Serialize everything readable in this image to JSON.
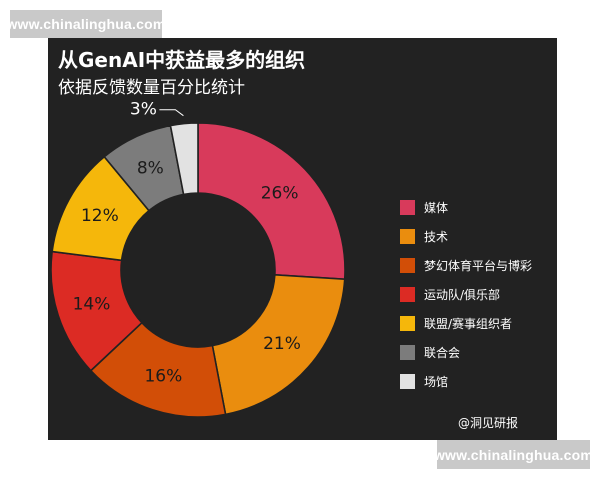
{
  "watermark": {
    "top": "www.chinalinghua.com",
    "bottom": "www.chinalinghua.com"
  },
  "source_credit": "@洞见研报",
  "chart_data": {
    "type": "pie",
    "donut": true,
    "title": "从GenAI中获益最多的组织",
    "subtitle": "依据反馈数量百分比统计",
    "legend_position": "right",
    "background": "#222222",
    "slices": [
      {
        "label": "媒体",
        "value": 26,
        "value_label": "26%",
        "color": "#d83a5b"
      },
      {
        "label": "技术",
        "value": 21,
        "value_label": "21%",
        "color": "#ea8d0e"
      },
      {
        "label": "梦幻体育平台与博彩",
        "value": 16,
        "value_label": "16%",
        "color": "#d24e07"
      },
      {
        "label": "运动队/俱乐部",
        "value": 14,
        "value_label": "14%",
        "color": "#dc2b24"
      },
      {
        "label": "联盟/赛事组织者",
        "value": 12,
        "value_label": "12%",
        "color": "#f5b70b"
      },
      {
        "label": "联合会",
        "value": 8,
        "value_label": "8%",
        "color": "#7c7c7c"
      },
      {
        "label": "场馆",
        "value": 3,
        "value_label": "3%",
        "color": "#e2e2e2"
      }
    ]
  }
}
